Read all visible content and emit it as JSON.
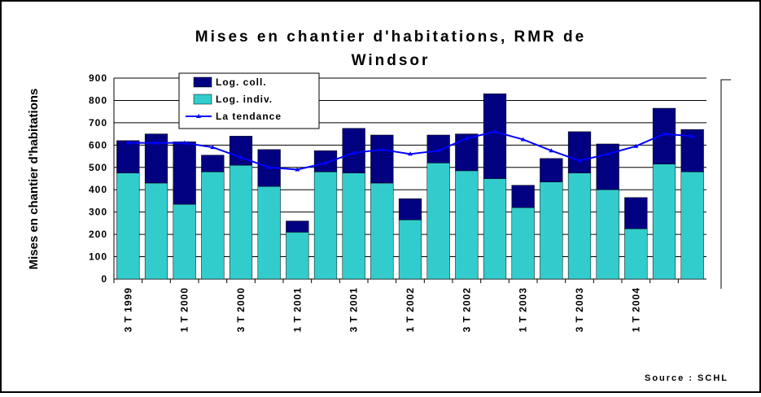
{
  "chart_data": {
    "type": "bar",
    "title": [
      "Mises en chantier d'habitations, RMR de",
      "Windsor"
    ],
    "y_label": "Mises en chantier d'habitations",
    "source": "Source : SCHL",
    "categories": [
      "3 T 1999",
      null,
      "1 T 2000",
      null,
      "3 T 2000",
      null,
      "1 T 2001",
      null,
      "3 T 2001",
      null,
      "1 T 2002",
      null,
      "3 T 2002",
      null,
      "1 T 2003",
      null,
      "3 T 2003",
      null,
      "1 T 2004",
      null,
      null
    ],
    "series": [
      {
        "name": "Log. indiv.",
        "color": "#33cccc",
        "values": [
          475,
          430,
          335,
          480,
          510,
          415,
          210,
          480,
          475,
          430,
          265,
          520,
          485,
          450,
          320,
          435,
          475,
          400,
          225,
          515,
          480
        ]
      },
      {
        "name": "Log. coll.",
        "color": "#000080",
        "values": [
          145,
          220,
          280,
          75,
          130,
          165,
          50,
          95,
          200,
          215,
          95,
          125,
          165,
          380,
          100,
          105,
          185,
          205,
          140,
          250,
          190
        ]
      },
      {
        "name": "La tendance",
        "color": "#0000ff",
        "type": "line",
        "values": [
          610,
          610,
          610,
          590,
          545,
          500,
          490,
          520,
          565,
          580,
          560,
          575,
          630,
          660,
          625,
          575,
          530,
          560,
          595,
          650,
          640
        ]
      }
    ],
    "ylim": [
      0,
      900
    ],
    "yticks": [
      0,
      100,
      200,
      300,
      400,
      500,
      600,
      700,
      800,
      900
    ],
    "grid": true
  }
}
